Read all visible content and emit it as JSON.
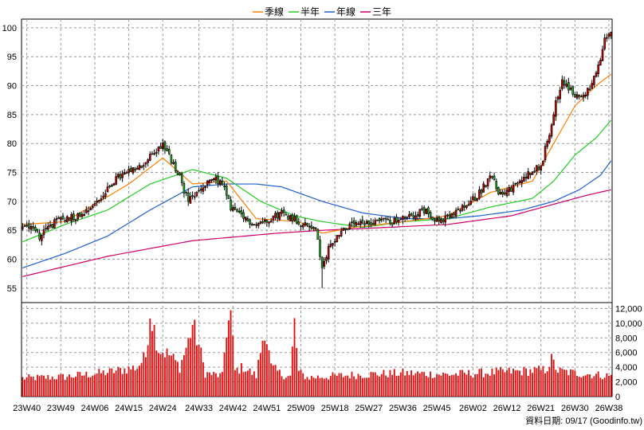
{
  "chart_data": {
    "type": "candlestick",
    "legend": {
      "placement": "top-center",
      "items": [
        {
          "label": "季線",
          "color": "#ff7f00"
        },
        {
          "label": "半年",
          "color": "#22cc22"
        },
        {
          "label": "年線",
          "color": "#1f5fd0"
        },
        {
          "label": "三年",
          "color": "#cc0066"
        }
      ]
    },
    "price_axis": {
      "ticks": [
        55,
        60,
        65,
        70,
        75,
        80,
        85,
        90,
        95,
        100
      ],
      "range": [
        52.5,
        101.5
      ]
    },
    "volume_axis": {
      "ticks": [
        "0",
        "2,000",
        "4,000",
        "6,000",
        "8,000",
        "10,000",
        "12,000"
      ],
      "range": [
        0,
        12800
      ]
    },
    "x_ticks": [
      "23W40",
      "23W49",
      "24W06",
      "24W15",
      "24W24",
      "24W33",
      "24W42",
      "24W51",
      "25W09",
      "25W18",
      "25W27",
      "25W36",
      "25W45",
      "26W02",
      "26W12",
      "26W21",
      "26W30",
      "26W38"
    ],
    "grid": true,
    "up_color": "#cc0000",
    "down_color": "#22aa22",
    "volume_color": "#e01010",
    "source_label": "資料日期: 09/17  (Goodinfo.tw)",
    "close_anchors": [
      [
        0,
        65.5
      ],
      [
        4,
        66
      ],
      [
        8,
        64
      ],
      [
        12,
        65.5
      ],
      [
        18,
        67
      ],
      [
        26,
        67.5
      ],
      [
        32,
        69
      ],
      [
        38,
        71
      ],
      [
        44,
        74
      ],
      [
        50,
        75
      ],
      [
        56,
        76
      ],
      [
        62,
        78.5
      ],
      [
        66,
        80
      ],
      [
        70,
        77
      ],
      [
        74,
        74
      ],
      [
        78,
        70
      ],
      [
        84,
        72
      ],
      [
        90,
        74
      ],
      [
        94,
        73
      ],
      [
        98,
        69
      ],
      [
        104,
        67
      ],
      [
        110,
        66
      ],
      [
        116,
        67
      ],
      [
        122,
        68
      ],
      [
        128,
        67
      ],
      [
        132,
        66
      ],
      [
        138,
        65.5
      ],
      [
        141,
        58
      ],
      [
        144,
        62
      ],
      [
        150,
        65
      ],
      [
        156,
        66
      ],
      [
        162,
        66
      ],
      [
        168,
        67
      ],
      [
        174,
        66.5
      ],
      [
        180,
        67
      ],
      [
        186,
        68
      ],
      [
        190,
        68.5
      ],
      [
        196,
        66.5
      ],
      [
        202,
        67.5
      ],
      [
        208,
        69
      ],
      [
        214,
        71
      ],
      [
        218,
        73
      ],
      [
        220,
        75
      ],
      [
        224,
        71.5
      ],
      [
        230,
        72
      ],
      [
        236,
        74
      ],
      [
        240,
        75.5
      ],
      [
        244,
        76
      ],
      [
        248,
        82
      ],
      [
        251,
        87
      ],
      [
        254,
        91
      ],
      [
        258,
        89
      ],
      [
        262,
        88
      ],
      [
        266,
        89
      ],
      [
        270,
        92
      ],
      [
        272,
        94
      ],
      [
        274,
        98
      ],
      [
        277,
        99
      ]
    ],
    "sma13_anchors": [
      [
        0,
        66
      ],
      [
        20,
        66.5
      ],
      [
        50,
        73
      ],
      [
        66,
        77.5
      ],
      [
        80,
        73
      ],
      [
        96,
        73.5
      ],
      [
        110,
        67
      ],
      [
        130,
        66.5
      ],
      [
        141,
        64.5
      ],
      [
        156,
        65.5
      ],
      [
        180,
        66.5
      ],
      [
        200,
        67.5
      ],
      [
        220,
        71.5
      ],
      [
        240,
        73.5
      ],
      [
        250,
        80
      ],
      [
        260,
        86.5
      ],
      [
        270,
        90
      ],
      [
        277,
        92
      ]
    ],
    "sma26_anchors": [
      [
        0,
        63
      ],
      [
        20,
        66
      ],
      [
        40,
        68.5
      ],
      [
        60,
        73
      ],
      [
        80,
        75.5
      ],
      [
        96,
        74
      ],
      [
        112,
        70
      ],
      [
        128,
        67.5
      ],
      [
        141,
        66.5
      ],
      [
        160,
        65.5
      ],
      [
        180,
        66.5
      ],
      [
        200,
        67
      ],
      [
        220,
        69
      ],
      [
        240,
        70.5
      ],
      [
        250,
        73.5
      ],
      [
        260,
        78
      ],
      [
        270,
        81
      ],
      [
        277,
        84
      ]
    ],
    "sma52_anchors": [
      [
        0,
        58.5
      ],
      [
        20,
        61
      ],
      [
        40,
        64
      ],
      [
        60,
        68.5
      ],
      [
        80,
        72.5
      ],
      [
        96,
        73
      ],
      [
        110,
        73
      ],
      [
        122,
        72.5
      ],
      [
        141,
        70
      ],
      [
        160,
        68
      ],
      [
        180,
        67
      ],
      [
        200,
        67
      ],
      [
        215,
        67.5
      ],
      [
        235,
        68.5
      ],
      [
        250,
        70
      ],
      [
        262,
        72
      ],
      [
        272,
        74.5
      ],
      [
        277,
        77
      ]
    ],
    "sma156_anchors": [
      [
        0,
        57
      ],
      [
        40,
        60.5
      ],
      [
        80,
        63.2
      ],
      [
        120,
        64.5
      ],
      [
        141,
        65
      ],
      [
        160,
        65.3
      ],
      [
        200,
        66
      ],
      [
        230,
        67.5
      ],
      [
        250,
        69.5
      ],
      [
        265,
        71
      ],
      [
        277,
        72
      ]
    ],
    "volume_anchors": [
      [
        0,
        2500
      ],
      [
        20,
        2700
      ],
      [
        40,
        3300
      ],
      [
        54,
        4000
      ],
      [
        58,
        5500
      ],
      [
        60,
        11800
      ],
      [
        64,
        6500
      ],
      [
        70,
        5500
      ],
      [
        74,
        4000
      ],
      [
        78,
        7500
      ],
      [
        80,
        9800
      ],
      [
        83,
        7000
      ],
      [
        86,
        3200
      ],
      [
        90,
        3000
      ],
      [
        94,
        2800
      ],
      [
        96,
        9200
      ],
      [
        98,
        11000
      ],
      [
        100,
        3500
      ],
      [
        104,
        4000
      ],
      [
        110,
        2800
      ],
      [
        114,
        9500
      ],
      [
        117,
        4000
      ],
      [
        122,
        3000
      ],
      [
        126,
        2700
      ],
      [
        128,
        10000
      ],
      [
        130,
        3300
      ],
      [
        134,
        2600
      ],
      [
        141,
        2700
      ],
      [
        160,
        3000
      ],
      [
        180,
        3200
      ],
      [
        200,
        3000
      ],
      [
        230,
        3400
      ],
      [
        246,
        3600
      ],
      [
        249,
        5000
      ],
      [
        252,
        3500
      ],
      [
        260,
        3200
      ],
      [
        277,
        2800
      ]
    ]
  }
}
